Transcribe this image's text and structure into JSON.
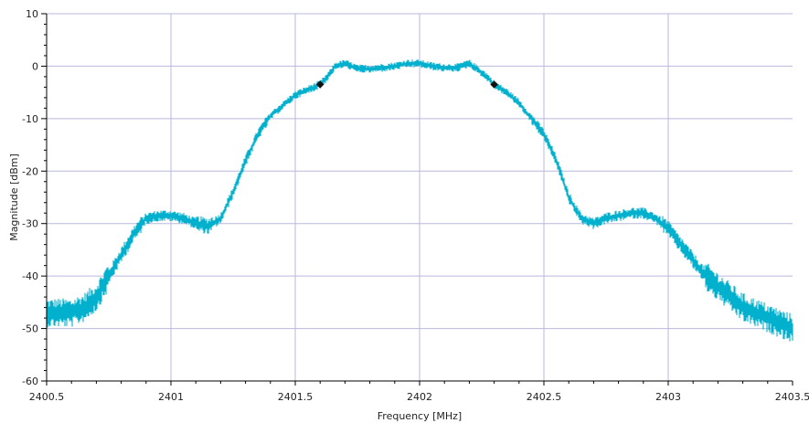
{
  "chart_data": {
    "type": "line",
    "title": "",
    "xlabel": "Frequency [MHz]",
    "ylabel": "Magnitude [dBm]",
    "xlim": [
      2400.5,
      2403.5
    ],
    "ylim": [
      -60,
      10
    ],
    "x_ticks": [
      {
        "value": 2400.5,
        "label": "2400.5"
      },
      {
        "value": 2401,
        "label": "2401"
      },
      {
        "value": 2401.5,
        "label": "2401.5"
      },
      {
        "value": 2402,
        "label": "2402"
      },
      {
        "value": 2402.5,
        "label": "2402.5"
      },
      {
        "value": 2403,
        "label": "2403"
      },
      {
        "value": 2403.5,
        "label": "2403.5"
      }
    ],
    "y_ticks": [
      {
        "value": 10,
        "label": "10"
      },
      {
        "value": 0,
        "label": "0"
      },
      {
        "value": -10,
        "label": "-10"
      },
      {
        "value": -20,
        "label": "-20"
      },
      {
        "value": -30,
        "label": "-30"
      },
      {
        "value": -40,
        "label": "-40"
      },
      {
        "value": -50,
        "label": "-50"
      },
      {
        "value": -60,
        "label": "-60"
      }
    ],
    "grid": true,
    "series_color": "#00b0cc",
    "grid_color": "#b8b8dc",
    "marker_color": "#111111",
    "series": [
      {
        "x": [
          2400.5,
          2400.6,
          2400.65,
          2400.7,
          2400.75,
          2400.8,
          2400.85,
          2400.9,
          2400.95,
          2401.0,
          2401.05,
          2401.1,
          2401.15,
          2401.2,
          2401.25,
          2401.3,
          2401.35,
          2401.4,
          2401.45,
          2401.5,
          2401.55,
          2401.6,
          2401.63,
          2401.66,
          2401.7,
          2401.75,
          2401.8,
          2401.85,
          2401.9,
          2401.95,
          2402.0,
          2402.05,
          2402.1,
          2402.15,
          2402.2,
          2402.23,
          2402.27,
          2402.3,
          2402.35,
          2402.4,
          2402.45,
          2402.5,
          2402.55,
          2402.6,
          2402.65,
          2402.7,
          2402.75,
          2402.8,
          2402.85,
          2402.9,
          2402.95,
          2403.0,
          2403.05,
          2403.1,
          2403.15,
          2403.2,
          2403.25,
          2403.3,
          2403.35,
          2403.4,
          2403.45,
          2403.5
        ],
        "y": [
          -47,
          -47,
          -46,
          -44,
          -40,
          -36,
          -32,
          -29,
          -28.5,
          -28.5,
          -29,
          -30,
          -30.5,
          -29,
          -24,
          -18,
          -13,
          -9.5,
          -7.5,
          -5.5,
          -4.5,
          -3.5,
          -2,
          0,
          0.5,
          -0.5,
          -0.5,
          -0.3,
          0,
          0.5,
          0.5,
          0,
          -0.3,
          -0.3,
          0.5,
          -0.5,
          -2,
          -3.5,
          -5,
          -7,
          -10,
          -13,
          -18,
          -25,
          -29,
          -30,
          -29,
          -28.5,
          -28,
          -28,
          -29,
          -31,
          -34,
          -37,
          -40,
          -42,
          -44,
          -46,
          -47,
          -48,
          -49,
          -50
        ]
      }
    ],
    "markers": [
      {
        "x": 2401.6,
        "y": -3.5
      },
      {
        "x": 2402.3,
        "y": -3.5
      }
    ]
  }
}
